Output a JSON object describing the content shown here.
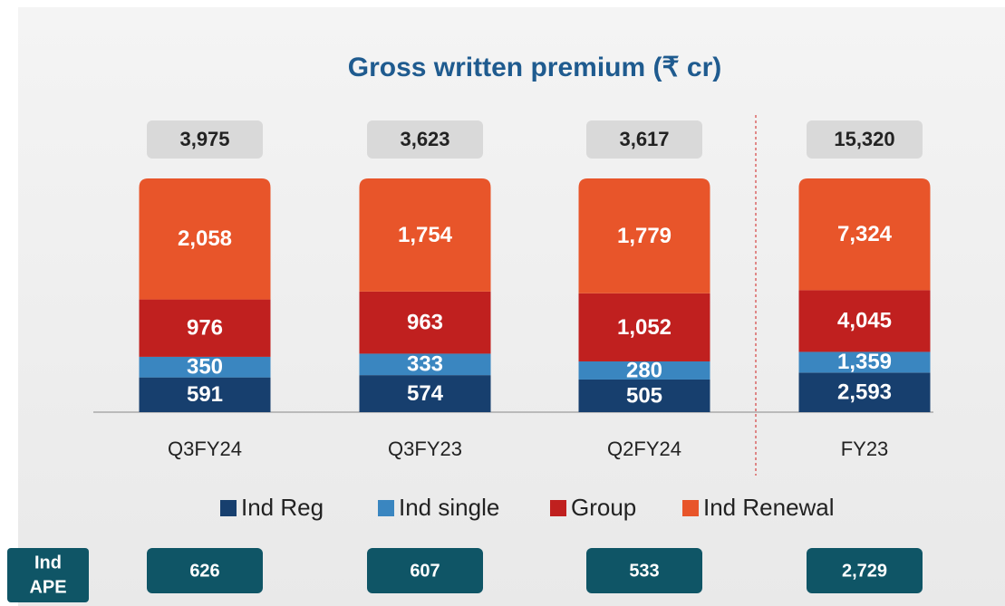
{
  "chart_data": {
    "type": "stacked_bar_100",
    "title": "Gross written premium (₹ cr)",
    "categories": [
      "Q3FY24",
      "Q3FY23",
      "Q2FY24",
      "FY23"
    ],
    "series": [
      {
        "name": "Ind Reg",
        "color": "#173f6e",
        "values": [
          591,
          574,
          505,
          2593
        ],
        "value_labels": [
          "591",
          "574",
          "505",
          "2,593"
        ]
      },
      {
        "name": "Ind single",
        "color": "#3a86c0",
        "values": [
          350,
          333,
          280,
          1359
        ],
        "value_labels": [
          "350",
          "333",
          "280",
          "1,359"
        ]
      },
      {
        "name": "Group",
        "color": "#c0201f",
        "values": [
          976,
          963,
          1052,
          4045
        ],
        "value_labels": [
          "976",
          "963",
          "1,052",
          "4,045"
        ]
      },
      {
        "name": "Ind Renewal",
        "color": "#e8552a",
        "values": [
          2058,
          1754,
          1779,
          7324
        ],
        "value_labels": [
          "2,058",
          "1,754",
          "1,779",
          "7,324"
        ]
      }
    ],
    "totals": [
      3975,
      3623,
      3617,
      15320
    ],
    "total_labels": [
      "3,975",
      "3,623",
      "3,617",
      "15,320"
    ],
    "ind_ape": {
      "label_lines": [
        "Ind",
        "APE"
      ],
      "values": [
        626,
        607,
        533,
        2729
      ],
      "value_labels": [
        "626",
        "607",
        "533",
        "2,729"
      ]
    }
  }
}
